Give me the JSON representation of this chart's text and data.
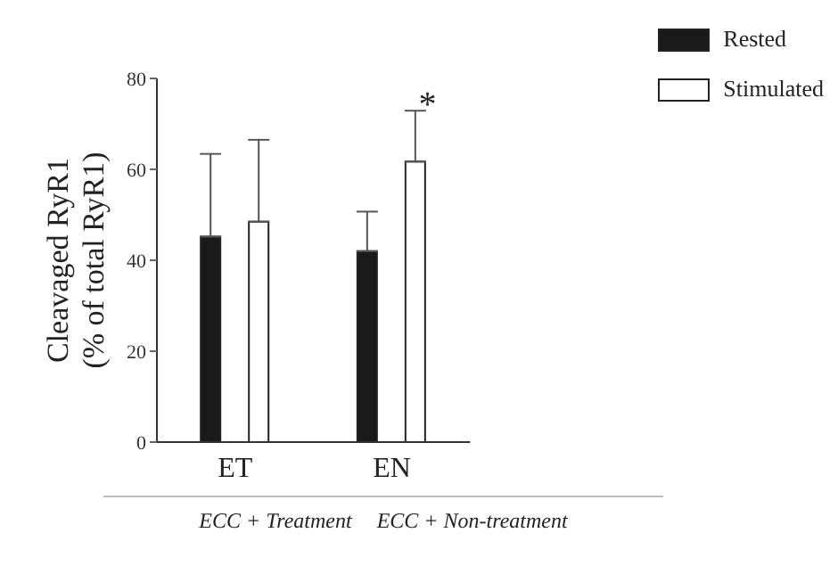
{
  "chart_data": {
    "type": "bar",
    "ylabel": "Cleavaged RyR1\n(% of total RyR1)",
    "categories": [
      "ET",
      "EN"
    ],
    "series": [
      {
        "name": "Rested",
        "color": "#1a1a1a",
        "values": [
          45.2,
          42
        ],
        "errors": [
          [
            45.2,
            63.4
          ],
          [
            42,
            50.7
          ]
        ]
      },
      {
        "name": "Stimulated",
        "color": "#ffffff",
        "values": [
          48.5,
          61.7
        ],
        "errors": [
          [
            48.5,
            66.5
          ],
          [
            61.7,
            72.9
          ]
        ]
      }
    ],
    "ylim": [
      0,
      80
    ],
    "yticks": [
      0,
      20,
      40,
      60,
      80
    ],
    "legend": "top right",
    "annotations": [
      "*",
      "ECC + Treatment",
      "ECC + Non-treatment"
    ]
  }
}
